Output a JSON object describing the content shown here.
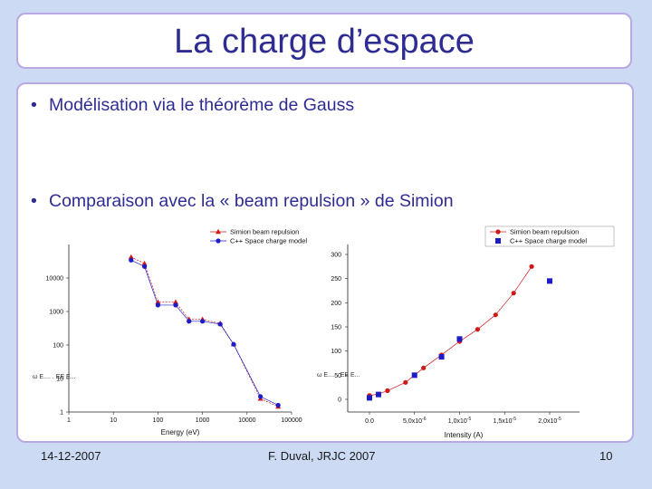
{
  "slide": {
    "title": "La charge d’espace",
    "bullets": [
      "Modélisation via le théorème de Gauss",
      "Comparaison avec la « beam repulsion » de Simion"
    ]
  },
  "footer": {
    "date": "14-12-2007",
    "author": "F. Duval, JRJC 2007",
    "page": "10"
  },
  "colors": {
    "title_text": "#2e2c93",
    "box_border": "#b8a9e2",
    "background": "#ccdaf4",
    "simion_series": "#d01818",
    "cpp_series": "#1c1cc8"
  },
  "chart_data": [
    {
      "type": "line",
      "xlabel": "Energy (eV)",
      "ylabel": "",
      "x_scale": "log",
      "y_scale": "log",
      "xlim": [
        1,
        100000
      ],
      "ylim": [
        1,
        100000
      ],
      "xticks": [
        "1",
        "10",
        "100",
        "1000",
        "10000",
        "100000"
      ],
      "yticks": [
        "1",
        "10",
        "100",
        "1000",
        "10000"
      ],
      "legend_position": "top-right",
      "series": [
        {
          "name": "Simion beam repulsion",
          "marker": "triangle",
          "x": [
            25,
            50,
            100,
            250,
            500,
            1000,
            2500,
            5000,
            20000,
            50000
          ],
          "values": [
            42000,
            27000,
            1900,
            1900,
            580,
            580,
            440,
            105,
            2.5,
            1.45
          ]
        },
        {
          "name": "C++ Space charge model",
          "marker": "circle",
          "x": [
            25,
            50,
            100,
            250,
            500,
            1000,
            2500,
            5000,
            20000,
            50000
          ],
          "values": [
            34000,
            22000,
            1550,
            1550,
            510,
            510,
            420,
            105,
            2.9,
            1.6
          ]
        }
      ],
      "annotation": "ω E.... . EE E..."
    },
    {
      "type": "scatter",
      "xlabel": "Intensity (A)",
      "ylabel": "",
      "xlim": [
        0,
        2e-05
      ],
      "ylim": [
        0,
        300
      ],
      "xticks": [
        "0.0",
        "5,0x10-6",
        "1,0x10-5",
        "1,5x10-5",
        "2,0x10-5"
      ],
      "yticks": [
        "0",
        "50",
        "100",
        "150",
        "200",
        "250",
        "300"
      ],
      "legend_position": "top-right",
      "series": [
        {
          "name": "Simion beam repulsion",
          "marker": "circle",
          "connected": true,
          "x": [
            0,
            1e-06,
            2e-06,
            4e-06,
            6e-06,
            8e-06,
            1e-05,
            1.2e-05,
            1.4e-05,
            1.6e-05,
            1.8e-05
          ],
          "values": [
            8,
            11,
            18,
            35,
            65,
            92,
            120,
            145,
            175,
            220,
            275
          ]
        },
        {
          "name": "C++ Space charge model",
          "marker": "square",
          "connected": false,
          "x": [
            0,
            1e-06,
            5e-06,
            8e-06,
            1e-05,
            2e-05
          ],
          "values": [
            3,
            10,
            50,
            88,
            125,
            245
          ]
        }
      ],
      "annotation": "ω E.... . EE E..."
    }
  ]
}
